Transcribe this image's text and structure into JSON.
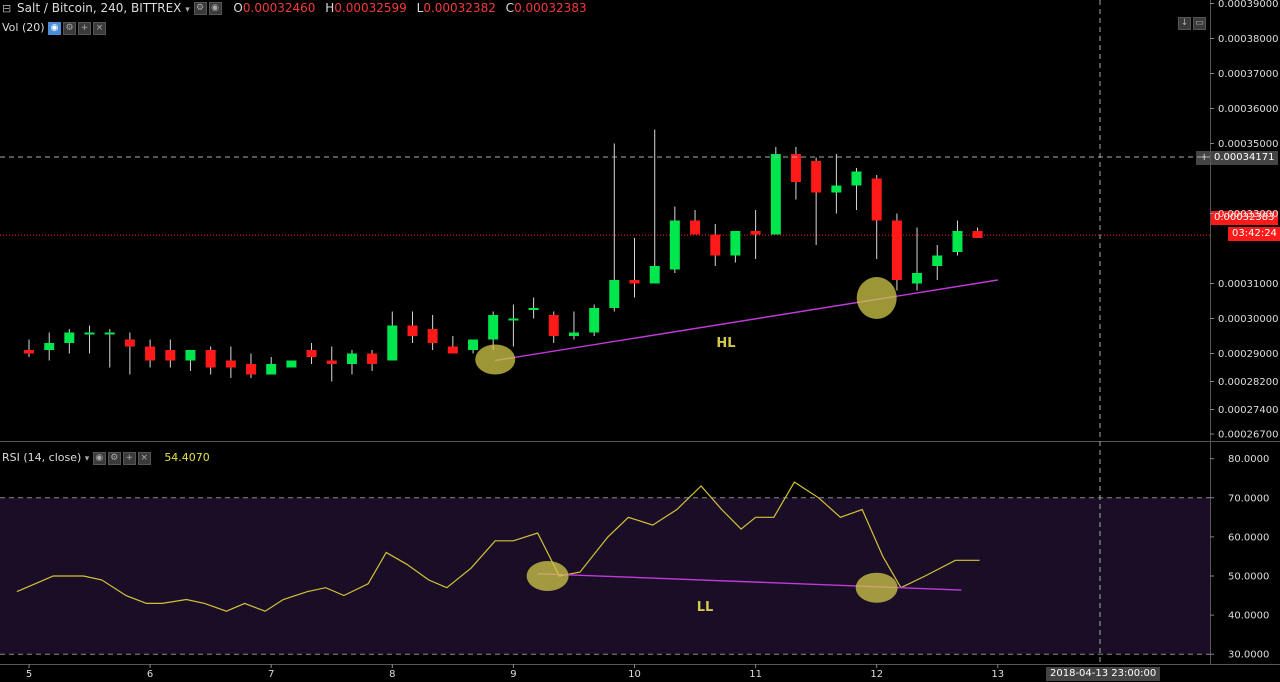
{
  "header": {
    "symbol": "Salt / Bitcoin, 240, BITTREX",
    "ohlc": [
      {
        "key": "O",
        "value": "0.00032460"
      },
      {
        "key": "H",
        "value": "0.00032599"
      },
      {
        "key": "L",
        "value": "0.00032382"
      },
      {
        "key": "C",
        "value": "0.00032383"
      }
    ],
    "volume_label": "Vol (20)",
    "rsi_label": "RSI (14, close)",
    "rsi_value": "54.4070"
  },
  "price_axis": {
    "ticks": [
      {
        "value": 0.00039,
        "label": "0.00039000"
      },
      {
        "value": 0.00038,
        "label": "0.00038000"
      },
      {
        "value": 0.00037,
        "label": "0.00037000"
      },
      {
        "value": 0.00036,
        "label": "0.00036000"
      },
      {
        "value": 0.00035,
        "label": "0.00035000"
      },
      {
        "value": 0.00033,
        "label": "0.00033000"
      },
      {
        "value": 0.00031,
        "label": "0.00031000"
      },
      {
        "value": 0.0003,
        "label": "0.00030000"
      },
      {
        "value": 0.00029,
        "label": "0.00029000"
      },
      {
        "value": 0.000282,
        "label": "0.00028200"
      },
      {
        "value": 0.000274,
        "label": "0.00027400"
      },
      {
        "value": 0.000267,
        "label": "0.00026700"
      }
    ],
    "crosshair_price": "0.00034171",
    "last_price": "0.00032383",
    "countdown": "03:42:24"
  },
  "rsi_axis": {
    "ticks": [
      {
        "value": 80,
        "label": "80.0000"
      },
      {
        "value": 70,
        "label": "70.0000"
      },
      {
        "value": 60,
        "label": "60.0000"
      },
      {
        "value": 50,
        "label": "50.0000"
      },
      {
        "value": 40,
        "label": "40.0000"
      },
      {
        "value": 30,
        "label": "30.0000"
      }
    ]
  },
  "time_axis": {
    "ticks": [
      {
        "day": 5,
        "label": "5"
      },
      {
        "day": 6,
        "label": "6"
      },
      {
        "day": 7,
        "label": "7"
      },
      {
        "day": 8,
        "label": "8"
      },
      {
        "day": 9,
        "label": "9"
      },
      {
        "day": 10,
        "label": "10"
      },
      {
        "day": 11,
        "label": "11"
      },
      {
        "day": 12,
        "label": "12"
      },
      {
        "day": 13,
        "label": "13"
      }
    ],
    "crosshair_label": "2018-04-13 23:00:00"
  },
  "annotations": {
    "price_label": "HL",
    "rsi_label": "LL"
  },
  "colors": {
    "up": "#00e64d",
    "down": "#ff1a1a",
    "rsi_line": "#d4c23a",
    "trendline": "#c03ad8",
    "marker": "#d2c84a",
    "rsi_band": "#1a0d26"
  },
  "chart_data": [
    {
      "type": "candlestick",
      "title": "Salt / Bitcoin, 240, BITTREX",
      "x_unit": "day of month (April 2018)",
      "candles": [
        {
          "t": 5.0,
          "o": 0.000291,
          "h": 0.000294,
          "l": 0.000289,
          "c": 0.00029
        },
        {
          "t": 5.167,
          "o": 0.000291,
          "h": 0.000296,
          "l": 0.000288,
          "c": 0.000293
        },
        {
          "t": 5.333,
          "o": 0.000293,
          "h": 0.000297,
          "l": 0.00029,
          "c": 0.000296
        },
        {
          "t": 5.5,
          "o": 0.000296,
          "h": 0.000298,
          "l": 0.00029,
          "c": 0.000296
        },
        {
          "t": 5.667,
          "o": 0.000296,
          "h": 0.000297,
          "l": 0.000286,
          "c": 0.000296
        },
        {
          "t": 5.833,
          "o": 0.000294,
          "h": 0.000296,
          "l": 0.000284,
          "c": 0.000292
        },
        {
          "t": 6.0,
          "o": 0.000292,
          "h": 0.000294,
          "l": 0.000286,
          "c": 0.000288
        },
        {
          "t": 6.167,
          "o": 0.000291,
          "h": 0.000294,
          "l": 0.000286,
          "c": 0.000288
        },
        {
          "t": 6.333,
          "o": 0.000288,
          "h": 0.000291,
          "l": 0.000285,
          "c": 0.000291
        },
        {
          "t": 6.5,
          "o": 0.000291,
          "h": 0.000292,
          "l": 0.000284,
          "c": 0.000286
        },
        {
          "t": 6.667,
          "o": 0.000288,
          "h": 0.000292,
          "l": 0.000283,
          "c": 0.000286
        },
        {
          "t": 6.833,
          "o": 0.000287,
          "h": 0.00029,
          "l": 0.000283,
          "c": 0.000284
        },
        {
          "t": 7.0,
          "o": 0.000284,
          "h": 0.000289,
          "l": 0.000284,
          "c": 0.000287
        },
        {
          "t": 7.167,
          "o": 0.000286,
          "h": 0.000288,
          "l": 0.000286,
          "c": 0.000288
        },
        {
          "t": 7.333,
          "o": 0.000291,
          "h": 0.000293,
          "l": 0.000287,
          "c": 0.000289
        },
        {
          "t": 7.5,
          "o": 0.000288,
          "h": 0.000292,
          "l": 0.000282,
          "c": 0.000287
        },
        {
          "t": 7.667,
          "o": 0.000287,
          "h": 0.000291,
          "l": 0.000284,
          "c": 0.00029
        },
        {
          "t": 7.833,
          "o": 0.00029,
          "h": 0.000291,
          "l": 0.000285,
          "c": 0.000287
        },
        {
          "t": 8.0,
          "o": 0.000288,
          "h": 0.000302,
          "l": 0.000288,
          "c": 0.000298
        },
        {
          "t": 8.167,
          "o": 0.000298,
          "h": 0.000302,
          "l": 0.000293,
          "c": 0.000295
        },
        {
          "t": 8.333,
          "o": 0.000297,
          "h": 0.000301,
          "l": 0.000291,
          "c": 0.000293
        },
        {
          "t": 8.5,
          "o": 0.000292,
          "h": 0.000295,
          "l": 0.000291,
          "c": 0.00029
        },
        {
          "t": 8.667,
          "o": 0.000291,
          "h": 0.000294,
          "l": 0.00029,
          "c": 0.000294
        },
        {
          "t": 8.833,
          "o": 0.000294,
          "h": 0.000302,
          "l": 0.000291,
          "c": 0.000301
        },
        {
          "t": 9.0,
          "o": 0.0003,
          "h": 0.000304,
          "l": 0.000292,
          "c": 0.0003
        },
        {
          "t": 9.167,
          "o": 0.000303,
          "h": 0.000306,
          "l": 0.0003,
          "c": 0.000303
        },
        {
          "t": 9.333,
          "o": 0.000301,
          "h": 0.000302,
          "l": 0.000293,
          "c": 0.000295
        },
        {
          "t": 9.5,
          "o": 0.000295,
          "h": 0.000302,
          "l": 0.000294,
          "c": 0.000296
        },
        {
          "t": 9.667,
          "o": 0.000296,
          "h": 0.000304,
          "l": 0.000295,
          "c": 0.000303
        },
        {
          "t": 9.833,
          "o": 0.000303,
          "h": 0.00035,
          "l": 0.000302,
          "c": 0.000311
        },
        {
          "t": 10.0,
          "o": 0.000311,
          "h": 0.000323,
          "l": 0.000306,
          "c": 0.00031
        },
        {
          "t": 10.167,
          "o": 0.00031,
          "h": 0.000354,
          "l": 0.00031,
          "c": 0.000315
        },
        {
          "t": 10.333,
          "o": 0.000314,
          "h": 0.000332,
          "l": 0.000313,
          "c": 0.000328
        },
        {
          "t": 10.5,
          "o": 0.000328,
          "h": 0.000331,
          "l": 0.000324,
          "c": 0.000324
        },
        {
          "t": 10.667,
          "o": 0.000324,
          "h": 0.000327,
          "l": 0.000315,
          "c": 0.000318
        },
        {
          "t": 10.833,
          "o": 0.000318,
          "h": 0.000325,
          "l": 0.000316,
          "c": 0.000325
        },
        {
          "t": 11.0,
          "o": 0.000325,
          "h": 0.000331,
          "l": 0.000317,
          "c": 0.000324
        },
        {
          "t": 11.167,
          "o": 0.000324,
          "h": 0.000349,
          "l": 0.000324,
          "c": 0.000347
        },
        {
          "t": 11.333,
          "o": 0.000347,
          "h": 0.000349,
          "l": 0.000334,
          "c": 0.000339
        },
        {
          "t": 11.5,
          "o": 0.000345,
          "h": 0.000346,
          "l": 0.000321,
          "c": 0.000336
        },
        {
          "t": 11.667,
          "o": 0.000336,
          "h": 0.000347,
          "l": 0.00033,
          "c": 0.000338
        },
        {
          "t": 11.833,
          "o": 0.000338,
          "h": 0.000343,
          "l": 0.000331,
          "c": 0.000342
        },
        {
          "t": 12.0,
          "o": 0.00034,
          "h": 0.000341,
          "l": 0.000317,
          "c": 0.000328
        },
        {
          "t": 12.167,
          "o": 0.000328,
          "h": 0.00033,
          "l": 0.000308,
          "c": 0.000311
        },
        {
          "t": 12.333,
          "o": 0.00031,
          "h": 0.000326,
          "l": 0.000308,
          "c": 0.000313
        },
        {
          "t": 12.5,
          "o": 0.000315,
          "h": 0.000321,
          "l": 0.000311,
          "c": 0.000318
        },
        {
          "t": 12.667,
          "o": 0.000319,
          "h": 0.000328,
          "l": 0.000318,
          "c": 0.000325
        },
        {
          "t": 12.833,
          "o": 0.000325,
          "h": 0.000326,
          "l": 0.000323,
          "c": 0.000323
        }
      ],
      "trendline": {
        "label": "HL",
        "from": {
          "t": 8.85,
          "p": 0.000288
        },
        "to": {
          "t": 13.0,
          "p": 0.000311
        }
      },
      "markers": [
        {
          "t": 8.85,
          "p": 0.000288
        },
        {
          "t": 12.0,
          "p": 0.000305
        }
      ],
      "ylim": [
        0.000265,
        0.000391
      ]
    },
    {
      "type": "line",
      "title": "RSI (14, close)",
      "x": [
        4.9,
        5.05,
        5.2,
        5.45,
        5.6,
        5.8,
        5.97,
        6.1,
        6.3,
        6.45,
        6.63,
        6.78,
        6.95,
        7.1,
        7.3,
        7.45,
        7.6,
        7.8,
        7.95,
        8.12,
        8.3,
        8.45,
        8.65,
        8.85,
        9.0,
        9.2,
        9.38,
        9.55,
        9.78,
        9.95,
        10.15,
        10.35,
        10.55,
        10.72,
        10.88,
        11.0,
        11.15,
        11.32,
        11.52,
        11.7,
        11.88,
        12.05,
        12.2,
        12.4,
        12.65,
        12.85
      ],
      "values": [
        46,
        48,
        50,
        50,
        49,
        45,
        43,
        43,
        44,
        43,
        41,
        43,
        41,
        44,
        46,
        47,
        45,
        48,
        56,
        53,
        49,
        47,
        52,
        59,
        59,
        61,
        50,
        51,
        60,
        65,
        63,
        67,
        73,
        67,
        62,
        65,
        65,
        74,
        70,
        65,
        67,
        55,
        47,
        50,
        54,
        54
      ],
      "trendline": {
        "label": "LL",
        "from": {
          "t": 9.2,
          "v": 50.6
        },
        "to": {
          "t": 12.7,
          "v": 46.4
        }
      },
      "markers": [
        {
          "t": 9.2,
          "v": 50.0
        },
        {
          "t": 12.0,
          "v": 47.0
        }
      ],
      "bands": [
        30,
        70
      ],
      "ylim": [
        27.5,
        84
      ]
    }
  ]
}
